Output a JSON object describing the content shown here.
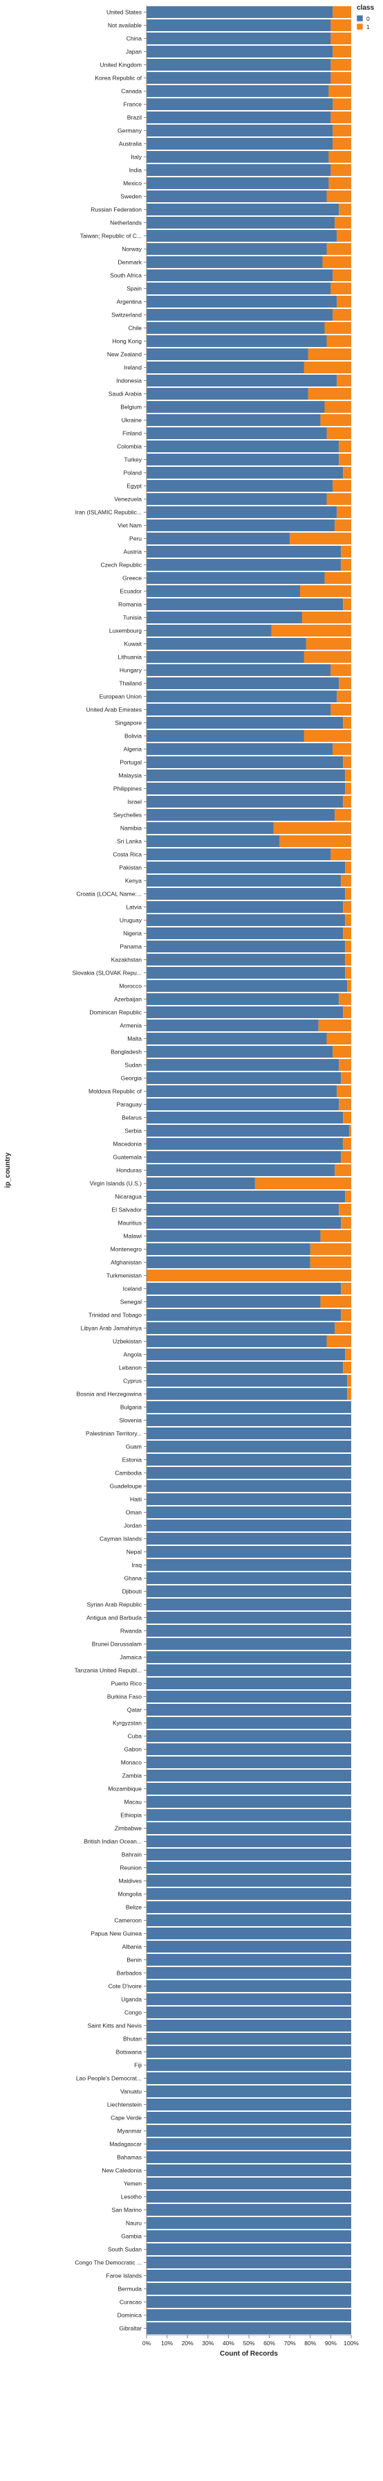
{
  "chart_data": {
    "type": "bar",
    "orientation": "horizontal",
    "stacked": "normalize",
    "xlabel": "Count of Records",
    "ylabel": "ip_country",
    "xlim": [
      0,
      100
    ],
    "x_ticks": [
      "0%",
      "10%",
      "20%",
      "30%",
      "40%",
      "50%",
      "60%",
      "70%",
      "80%",
      "90%",
      "100%"
    ],
    "grid": false,
    "legend": {
      "title": "class",
      "position": "top-right",
      "entries": [
        {
          "label": "0",
          "color": "#4c78a8"
        },
        {
          "label": "1",
          "color": "#f58518"
        }
      ]
    },
    "categories": [
      "United States",
      "Not available",
      "China",
      "Japan",
      "United Kingdom",
      "Korea Republic of",
      "Canada",
      "France",
      "Brazil",
      "Germany",
      "Australia",
      "Italy",
      "India",
      "Mexico",
      "Sweden",
      "Russian Federation",
      "Netherlands",
      "Taiwan; Republic of C...",
      "Norway",
      "Denmark",
      "South Africa",
      "Spain",
      "Argentina",
      "Switzerland",
      "Chile",
      "Hong Kong",
      "New Zealand",
      "Ireland",
      "Indonesia",
      "Saudi Arabia",
      "Belgium",
      "Ukraine",
      "Finland",
      "Colombia",
      "Turkey",
      "Poland",
      "Egypt",
      "Venezuela",
      "Iran (ISLAMIC Republic...",
      "Viet Nam",
      "Peru",
      "Austria",
      "Czech Republic",
      "Greece",
      "Ecuador",
      "Romania",
      "Tunisia",
      "Luxembourg",
      "Kuwait",
      "Lithuania",
      "Hungary",
      "Thailand",
      "European Union",
      "United Arab Emirates",
      "Singapore",
      "Bolivia",
      "Algeria",
      "Portugal",
      "Malaysia",
      "Philippines",
      "Israel",
      "Seychelles",
      "Namibia",
      "Sri Lanka",
      "Costa Rica",
      "Pakistan",
      "Kenya",
      "Croatia (LOCAL Name:...",
      "Latvia",
      "Uruguay",
      "Nigeria",
      "Panama",
      "Kazakhstan",
      "Slovakia (SLOVAK Repu...",
      "Morocco",
      "Azerbaijan",
      "Dominican Republic",
      "Armenia",
      "Malta",
      "Bangladesh",
      "Sudan",
      "Georgia",
      "Moldova Republic of",
      "Paraguay",
      "Belarus",
      "Serbia",
      "Macedonia",
      "Guatemala",
      "Honduras",
      "Virgin Islands (U.S.)",
      "Nicaragua",
      "El Salvador",
      "Mauritius",
      "Malawi",
      "Montenegro",
      "Afghanistan",
      "Turkmenistan",
      "Iceland",
      "Senegal",
      "Trinidad and Tobago",
      "Libyan Arab Jamahiriya",
      "Uzbekistan",
      "Angola",
      "Lebanon",
      "Cyprus",
      "Bosnia and Herzegowina",
      "Bulgaria",
      "Slovenia",
      "Palestinian Territory...",
      "Guam",
      "Estonia",
      "Cambodia",
      "Guadeloupe",
      "Haiti",
      "Oman",
      "Jordan",
      "Cayman Islands",
      "Nepal",
      "Iraq",
      "Ghana",
      "Djibouti",
      "Syrian Arab Republic",
      "Antigua and Barbuda",
      "Rwanda",
      "Brunei Darussalam",
      "Jamaica",
      "Tanzania United Republ...",
      "Puerto Rico",
      "Burkina Faso",
      "Qatar",
      "Kyrgyzstan",
      "Cuba",
      "Gabon",
      "Monaco",
      "Zambia",
      "Mozambique",
      "Macau",
      "Ethiopia",
      "Zimbabwe",
      "British Indian Ocean...",
      "Bahrain",
      "Reunion",
      "Maldives",
      "Mongolia",
      "Belize",
      "Cameroon",
      "Papua New Guinea",
      "Albania",
      "Benin",
      "Barbados",
      "Cote D'ivoire",
      "Uganda",
      "Congo",
      "Saint Kitts and Nevis",
      "Bhutan",
      "Botswana",
      "Fiji",
      "Lao People's Democrat...",
      "Vanuatu",
      "Liechtenstein",
      "Cape Verde",
      "Myanmar",
      "Madagascar",
      "Bahamas",
      "New Caledonia",
      "Yemen",
      "Lesotho",
      "San Marino",
      "Nauru",
      "Gambia",
      "South Sudan",
      "Congo The Democratic ...",
      "Faroe Islands",
      "Bermuda",
      "Curacao",
      "Dominica",
      "Gibraltar"
    ],
    "series": [
      {
        "name": "0",
        "values": [
          91,
          90,
          90,
          91,
          90,
          90,
          89,
          91,
          90,
          91,
          91,
          89,
          90,
          89,
          88,
          94,
          92,
          93,
          88,
          86,
          91,
          90,
          93,
          91,
          87,
          88,
          79,
          77,
          93,
          79,
          87,
          85,
          88,
          94,
          94,
          96,
          91,
          88,
          93,
          92,
          70,
          95,
          95,
          87,
          75,
          96,
          76,
          61,
          78,
          77,
          90,
          94,
          93,
          90,
          96,
          77,
          91,
          96,
          97,
          97,
          96,
          92,
          62,
          65,
          90,
          97,
          95,
          97,
          96,
          97,
          96,
          97,
          97,
          97,
          98,
          94,
          96,
          84,
          88,
          91,
          94,
          95,
          93,
          94,
          96,
          99,
          96,
          95,
          92,
          53,
          97,
          94,
          95,
          85,
          80,
          80,
          0,
          95,
          85,
          95,
          92,
          88,
          97,
          96,
          98,
          98,
          100,
          100,
          100,
          100,
          100,
          100,
          100,
          100,
          100,
          100,
          100,
          100,
          100,
          100,
          100,
          100,
          100,
          100,
          100,
          100,
          100,
          100,
          100,
          100,
          100,
          100,
          100,
          100,
          100,
          100,
          100,
          100,
          100,
          100,
          100,
          100,
          100,
          100,
          100,
          100,
          100,
          100,
          100,
          100,
          100,
          100,
          100,
          100,
          100,
          100,
          100,
          100,
          100,
          100,
          100,
          100,
          100,
          100,
          100,
          100,
          100,
          100,
          100,
          100,
          100,
          100,
          100,
          100,
          100,
          100,
          100
        ]
      },
      {
        "name": "1",
        "values": [
          9,
          10,
          10,
          9,
          10,
          10,
          11,
          9,
          10,
          9,
          9,
          11,
          10,
          11,
          12,
          6,
          8,
          7,
          12,
          14,
          9,
          10,
          7,
          9,
          13,
          12,
          21,
          23,
          7,
          21,
          13,
          15,
          12,
          6,
          6,
          4,
          9,
          12,
          7,
          8,
          30,
          5,
          5,
          13,
          25,
          4,
          24,
          39,
          22,
          23,
          10,
          6,
          7,
          10,
          4,
          23,
          9,
          4,
          3,
          3,
          4,
          8,
          38,
          35,
          10,
          3,
          5,
          3,
          4,
          3,
          4,
          3,
          3,
          3,
          2,
          6,
          4,
          16,
          12,
          9,
          6,
          5,
          7,
          6,
          4,
          1,
          4,
          5,
          8,
          47,
          3,
          6,
          5,
          15,
          20,
          20,
          100,
          5,
          15,
          5,
          8,
          12,
          3,
          4,
          2,
          2,
          0,
          0,
          0,
          0,
          0,
          0,
          0,
          0,
          0,
          0,
          0,
          0,
          0,
          0,
          0,
          0,
          0,
          0,
          0,
          0,
          0,
          0,
          0,
          0,
          0,
          0,
          0,
          0,
          0,
          0,
          0,
          0,
          0,
          0,
          0,
          0,
          0,
          0,
          0,
          0,
          0,
          0,
          0,
          0,
          0,
          0,
          0,
          0,
          0,
          0,
          0,
          0,
          0,
          0,
          0,
          0,
          0,
          0,
          0,
          0,
          0,
          0,
          0,
          0,
          0,
          0,
          0,
          0,
          0,
          0,
          0
        ]
      }
    ]
  }
}
